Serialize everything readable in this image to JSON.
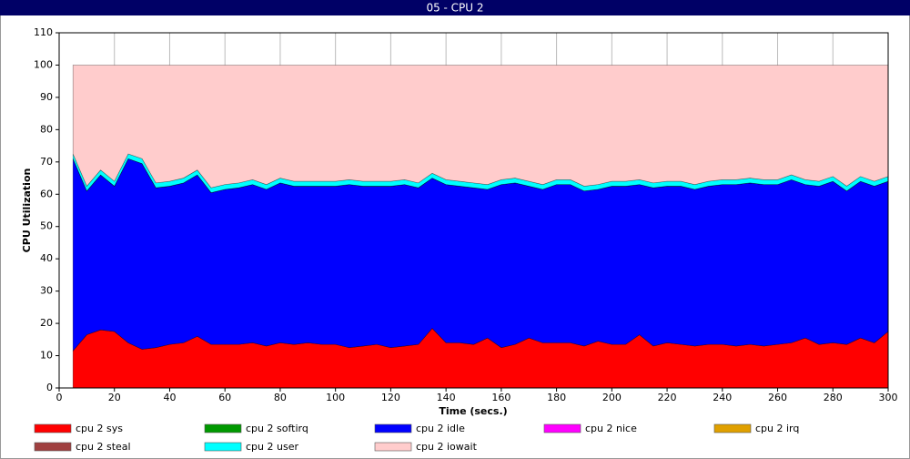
{
  "chart_data": {
    "type": "stacked_area",
    "title": "05 - CPU 2",
    "x_label": "Time (secs.)",
    "y_label": "CPU Utilization",
    "xlim": [
      0,
      300
    ],
    "ylim": [
      0,
      110
    ],
    "xticks": [
      0,
      20,
      40,
      60,
      80,
      100,
      120,
      140,
      160,
      180,
      200,
      220,
      240,
      260,
      280,
      300
    ],
    "yticks": [
      0,
      10,
      20,
      30,
      40,
      50,
      60,
      70,
      80,
      90,
      100,
      110
    ],
    "grid": "x",
    "x": [
      5,
      10,
      15,
      20,
      25,
      30,
      35,
      40,
      45,
      50,
      55,
      60,
      65,
      70,
      75,
      80,
      85,
      90,
      95,
      100,
      105,
      110,
      115,
      120,
      125,
      130,
      135,
      140,
      145,
      150,
      155,
      160,
      165,
      170,
      175,
      180,
      185,
      190,
      195,
      200,
      205,
      210,
      215,
      220,
      225,
      230,
      235,
      240,
      245,
      250,
      255,
      260,
      265,
      270,
      275,
      280,
      285,
      290,
      295,
      300
    ],
    "series": [
      {
        "name": "cpu 2 sys",
        "color": "#ff0000",
        "values": [
          11.5,
          16.5,
          18,
          17.5,
          14,
          12,
          12.5,
          13.5,
          14,
          16,
          13.5,
          13.5,
          13.5,
          14,
          13,
          14,
          13.5,
          14,
          13.5,
          13.5,
          12.5,
          13,
          13.5,
          12.5,
          13,
          13.5,
          18.5,
          14,
          14,
          13.5,
          15.5,
          12.5,
          13.5,
          15.5,
          14,
          14,
          14,
          13,
          14.5,
          13.5,
          13.5,
          16.5,
          13,
          14,
          13.5,
          13,
          13.5,
          13.5,
          13,
          13.5,
          13,
          13.5,
          14,
          15.5,
          13.5,
          14,
          13.5,
          15.5,
          14,
          17.5
        ]
      },
      {
        "name": "cpu 2 softirq",
        "color": "#009900",
        "values": [
          0,
          0,
          0,
          0,
          0,
          0,
          0,
          0,
          0,
          0,
          0,
          0,
          0,
          0,
          0,
          0,
          0,
          0,
          0,
          0,
          0,
          0,
          0,
          0,
          0,
          0,
          0,
          0,
          0,
          0,
          0,
          0,
          0,
          0,
          0,
          0,
          0,
          0,
          0,
          0,
          0,
          0,
          0,
          0,
          0,
          0,
          0,
          0,
          0,
          0,
          0,
          0,
          0,
          0,
          0,
          0,
          0,
          0,
          0,
          0
        ]
      },
      {
        "name": "cpu 2 idle",
        "color": "#0000ff",
        "values": [
          59.5,
          44.5,
          48,
          45,
          57,
          57.5,
          49.5,
          49,
          49.5,
          50,
          47,
          48,
          48.5,
          49,
          48.5,
          49.5,
          49,
          48.5,
          49,
          49,
          50.5,
          49.5,
          49,
          50,
          50,
          48.5,
          46.5,
          49,
          48.5,
          48.5,
          46,
          50.5,
          50,
          47,
          47.5,
          49,
          49,
          48,
          47,
          49,
          49,
          46.5,
          49,
          48.5,
          49,
          48.5,
          49,
          49.5,
          50,
          50,
          50,
          49.5,
          50.5,
          47.5,
          49,
          50,
          47.5,
          48.5,
          48.5,
          46.5
        ]
      },
      {
        "name": "cpu 2 nice",
        "color": "#ff00ff",
        "values": [
          0,
          0,
          0,
          0,
          0,
          0,
          0,
          0,
          0,
          0,
          0,
          0,
          0,
          0,
          0,
          0,
          0,
          0,
          0,
          0,
          0,
          0,
          0,
          0,
          0,
          0,
          0,
          0,
          0,
          0,
          0,
          0,
          0,
          0,
          0,
          0,
          0,
          0,
          0,
          0,
          0,
          0,
          0,
          0,
          0,
          0,
          0,
          0,
          0,
          0,
          0,
          0,
          0,
          0,
          0,
          0,
          0,
          0,
          0,
          0
        ]
      },
      {
        "name": "cpu 2 irq",
        "color": "#e0a000",
        "values": [
          0,
          0,
          0,
          0,
          0,
          0,
          0,
          0,
          0,
          0,
          0,
          0,
          0,
          0,
          0,
          0,
          0,
          0,
          0,
          0,
          0,
          0,
          0,
          0,
          0,
          0,
          0,
          0,
          0,
          0,
          0,
          0,
          0,
          0,
          0,
          0,
          0,
          0,
          0,
          0,
          0,
          0,
          0,
          0,
          0,
          0,
          0,
          0,
          0,
          0,
          0,
          0,
          0,
          0,
          0,
          0,
          0,
          0,
          0,
          0
        ]
      },
      {
        "name": "cpu 2 steal",
        "color": "#a04040",
        "values": [
          0,
          0,
          0,
          0,
          0,
          0,
          0,
          0,
          0,
          0,
          0,
          0,
          0,
          0,
          0,
          0,
          0,
          0,
          0,
          0,
          0,
          0,
          0,
          0,
          0,
          0,
          0,
          0,
          0,
          0,
          0,
          0,
          0,
          0,
          0,
          0,
          0,
          0,
          0,
          0,
          0,
          0,
          0,
          0,
          0,
          0,
          0,
          0,
          0,
          0,
          0,
          0,
          0,
          0,
          0,
          0,
          0,
          0,
          0,
          0
        ]
      },
      {
        "name": "cpu 2 user",
        "color": "#00ffff",
        "values": [
          1.5,
          1.5,
          1.5,
          1.5,
          1.5,
          1.5,
          1.5,
          1.5,
          1.5,
          1.5,
          1.5,
          1.5,
          1.5,
          1.5,
          1.5,
          1.5,
          1.5,
          1.5,
          1.5,
          1.5,
          1.5,
          1.5,
          1.5,
          1.5,
          1.5,
          1.5,
          1.5,
          1.5,
          1.5,
          1.5,
          1.5,
          1.5,
          1.5,
          1.5,
          1.5,
          1.5,
          1.5,
          1.5,
          1.5,
          1.5,
          1.5,
          1.5,
          1.5,
          1.5,
          1.5,
          1.5,
          1.5,
          1.5,
          1.5,
          1.5,
          1.5,
          1.5,
          1.5,
          1.5,
          1.5,
          1.5,
          1.5,
          1.5,
          1.5,
          1.5
        ]
      },
      {
        "name": "cpu 2 iowait",
        "color": "#ffcccc",
        "values": [
          27.5,
          37.5,
          32.5,
          36,
          27.5,
          29,
          36.5,
          36,
          35,
          32.5,
          38,
          37,
          36.5,
          35.5,
          37,
          35,
          36,
          36,
          36,
          36,
          35.5,
          36,
          36,
          36,
          35.5,
          36.5,
          33.5,
          35.5,
          36,
          36.5,
          37,
          35.5,
          35,
          36,
          37,
          35.5,
          35.5,
          37.5,
          37,
          36,
          36,
          35.5,
          36.5,
          36,
          36,
          37,
          36,
          35.5,
          35.5,
          35,
          35.5,
          35.5,
          34,
          35.5,
          36,
          34.5,
          37.5,
          34.5,
          36,
          34.5
        ]
      }
    ]
  }
}
